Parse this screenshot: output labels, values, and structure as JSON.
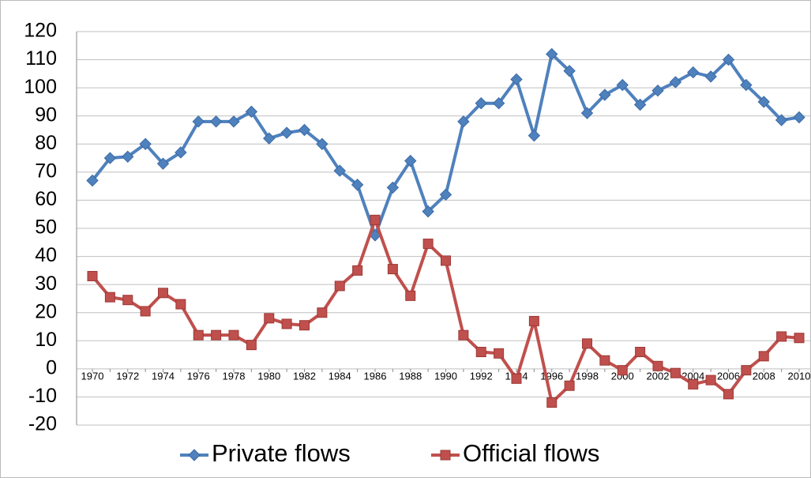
{
  "chart_data": {
    "type": "line",
    "categories": [
      "1970",
      null,
      "1972",
      null,
      "1974",
      null,
      "1976",
      null,
      "1978",
      null,
      "1980",
      null,
      "1982",
      null,
      "1984",
      null,
      "1986",
      null,
      "1988",
      null,
      "1990",
      null,
      "1992",
      null,
      "1994",
      null,
      "1996",
      null,
      "1998",
      null,
      "2000",
      null,
      "2002",
      null,
      "2004",
      null,
      "2006",
      null,
      "2008",
      null,
      "2010"
    ],
    "series": [
      {
        "name": "Private flows",
        "color": "#4f81bd",
        "marker": "diamond",
        "values": [
          67,
          75,
          75.5,
          80,
          73,
          77,
          88,
          88,
          88,
          91.5,
          82,
          84,
          85,
          80,
          70.5,
          65.5,
          47.5,
          64.5,
          74,
          56,
          62,
          88,
          94.5,
          94.5,
          103,
          83,
          112,
          106,
          91,
          97.5,
          101,
          94,
          99,
          102,
          105.5,
          104,
          110,
          101,
          95,
          88.5,
          89.5
        ]
      },
      {
        "name": "Official flows",
        "color": "#c0504d",
        "marker": "square",
        "values": [
          33,
          25.5,
          24.5,
          20.5,
          27,
          23,
          12,
          12,
          12,
          8.5,
          18,
          16,
          15.5,
          20,
          29.5,
          35,
          53,
          35.5,
          26,
          44.5,
          38.5,
          12,
          6,
          5.5,
          -3.5,
          17,
          -12,
          -6,
          9,
          3,
          -0.5,
          6,
          1,
          -1.5,
          -5.5,
          -4,
          -9,
          -0.5,
          4.5,
          11.5,
          11
        ]
      }
    ],
    "ylim": [
      -20,
      120
    ],
    "yticks": [
      -20,
      -10,
      0,
      10,
      20,
      30,
      40,
      50,
      60,
      70,
      80,
      90,
      100,
      110,
      120
    ],
    "grid": true,
    "legend": "bottom"
  }
}
